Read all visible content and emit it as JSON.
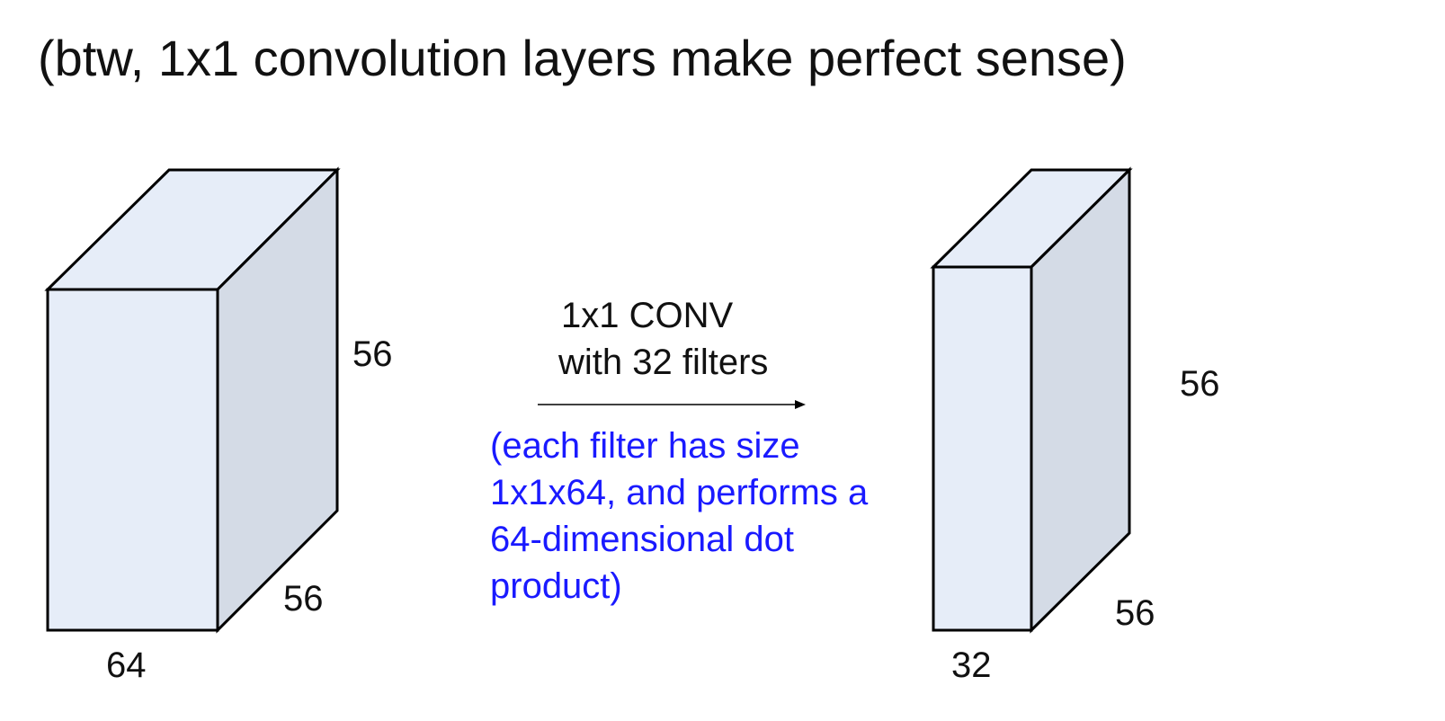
{
  "title": "(btw, 1x1 convolution layers make perfect sense)",
  "input_volume": {
    "height_label": "56",
    "depth_label": "56",
    "width_label": "64"
  },
  "operation": {
    "line1": "1x1 CONV",
    "line2": "with 32 filters",
    "note_lines": [
      "(each filter has size",
      "1x1x64, and performs a",
      "64-dimensional dot",
      "product)"
    ]
  },
  "output_volume": {
    "height_label": "56",
    "depth_label": "56",
    "width_label": "32"
  },
  "colors": {
    "front_face": "#e6edf8",
    "side_face": "#d4dbe6",
    "top_face": "#e6edf8",
    "stroke": "#000000",
    "note_text": "#1a1aff"
  }
}
